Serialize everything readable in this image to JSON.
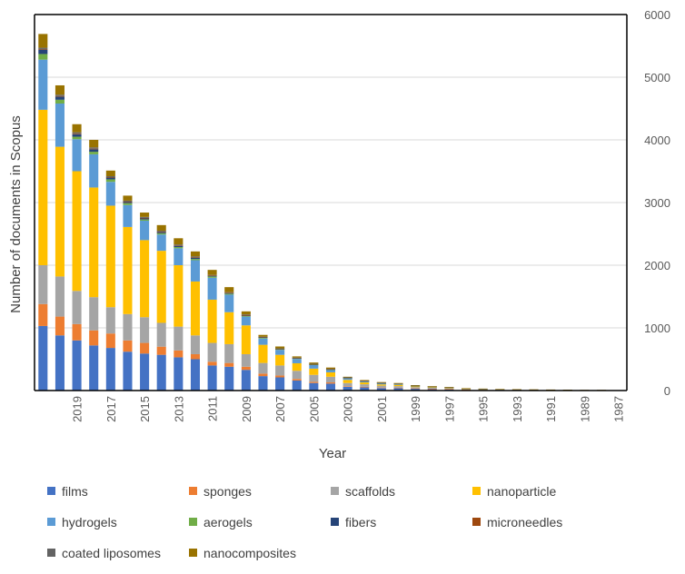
{
  "chart_data": {
    "type": "bar",
    "stacked": true,
    "xlabel": "Year",
    "ylabel": "Number of documents in Scopus",
    "ylim": [
      0,
      6000
    ],
    "yticks": [
      0,
      1000,
      2000,
      3000,
      4000,
      5000,
      6000
    ],
    "y_axis_side": "right",
    "grid": true,
    "legend_position": "bottom",
    "categories": [
      "2021",
      "2020",
      "2019",
      "2018",
      "2017",
      "2016",
      "2015",
      "2014",
      "2013",
      "2012",
      "2011",
      "2010",
      "2009",
      "2008",
      "2007",
      "2006",
      "2005",
      "2004",
      "2003",
      "2002",
      "2001",
      "2000",
      "1999",
      "1998",
      "1997",
      "1996",
      "1995",
      "1994",
      "1993",
      "1992",
      "1991",
      "1990",
      "1989",
      "1988",
      "1987"
    ],
    "x_tick_labels": [
      "2019",
      "2017",
      "2015",
      "2013",
      "2011",
      "2009",
      "2007",
      "2005",
      "2003",
      "2001",
      "1999",
      "1997",
      "1995",
      "1993",
      "1991",
      "1989",
      "1987"
    ],
    "series": [
      {
        "name": "films",
        "color": "#4472C4",
        "values": [
          1030,
          880,
          800,
          720,
          680,
          620,
          590,
          570,
          530,
          500,
          400,
          380,
          330,
          230,
          210,
          160,
          120,
          110,
          60,
          50,
          40,
          40,
          30,
          25,
          20,
          12,
          10,
          8,
          6,
          5,
          4,
          3,
          2,
          2,
          0
        ]
      },
      {
        "name": "sponges",
        "color": "#ED7D31",
        "values": [
          350,
          300,
          260,
          240,
          230,
          180,
          170,
          130,
          110,
          80,
          60,
          60,
          50,
          40,
          30,
          25,
          20,
          20,
          10,
          10,
          8,
          6,
          5,
          4,
          3,
          2,
          2,
          1,
          1,
          1,
          1,
          0,
          0,
          0,
          0
        ]
      },
      {
        "name": "scaffolds",
        "color": "#A5A5A5",
        "values": [
          620,
          640,
          530,
          530,
          420,
          420,
          410,
          380,
          380,
          300,
          300,
          300,
          200,
          170,
          160,
          130,
          110,
          90,
          50,
          40,
          30,
          25,
          20,
          15,
          12,
          8,
          6,
          4,
          3,
          3,
          2,
          2,
          1,
          1,
          0
        ]
      },
      {
        "name": "nanoparticle",
        "color": "#FFC000",
        "values": [
          2480,
          2070,
          1910,
          1750,
          1620,
          1390,
          1230,
          1150,
          980,
          860,
          690,
          510,
          460,
          290,
          170,
          120,
          100,
          70,
          50,
          30,
          20,
          20,
          10,
          10,
          8,
          5,
          4,
          3,
          3,
          2,
          2,
          2,
          1,
          1,
          0
        ]
      },
      {
        "name": "hydrogels",
        "color": "#5B9BD5",
        "values": [
          800,
          690,
          510,
          530,
          380,
          350,
          310,
          260,
          270,
          340,
          350,
          280,
          140,
          100,
          80,
          70,
          60,
          40,
          30,
          20,
          20,
          15,
          10,
          8,
          6,
          4,
          3,
          2,
          2,
          2,
          1,
          1,
          1,
          1,
          0
        ]
      },
      {
        "name": "aerogels",
        "color": "#70AD47",
        "values": [
          90,
          60,
          40,
          40,
          40,
          30,
          20,
          20,
          20,
          20,
          20,
          15,
          10,
          10,
          10,
          8,
          5,
          5,
          3,
          2,
          2,
          1,
          1,
          1,
          1,
          0,
          0,
          0,
          0,
          0,
          0,
          0,
          0,
          0,
          0
        ]
      },
      {
        "name": "fibers",
        "color": "#264478",
        "values": [
          70,
          50,
          40,
          40,
          30,
          20,
          20,
          20,
          20,
          20,
          10,
          10,
          10,
          10,
          5,
          5,
          5,
          5,
          3,
          2,
          2,
          1,
          1,
          1,
          1,
          0,
          0,
          0,
          0,
          0,
          0,
          0,
          0,
          0,
          0
        ]
      },
      {
        "name": "microneedles",
        "color": "#9E480E",
        "values": [
          10,
          10,
          10,
          10,
          5,
          5,
          5,
          5,
          5,
          5,
          5,
          5,
          3,
          3,
          3,
          2,
          2,
          2,
          1,
          1,
          1,
          0,
          0,
          0,
          0,
          0,
          0,
          0,
          0,
          0,
          0,
          0,
          0,
          0,
          0
        ]
      },
      {
        "name": "coated liposomes",
        "color": "#636363",
        "values": [
          20,
          20,
          20,
          20,
          15,
          15,
          15,
          15,
          15,
          15,
          10,
          10,
          10,
          5,
          5,
          5,
          5,
          5,
          3,
          2,
          2,
          2,
          2,
          1,
          1,
          1,
          1,
          1,
          1,
          1,
          1,
          1,
          1,
          1,
          0
        ]
      },
      {
        "name": "nanocomposites",
        "color": "#997300",
        "values": [
          220,
          150,
          130,
          120,
          90,
          80,
          70,
          90,
          100,
          80,
          80,
          80,
          50,
          30,
          30,
          20,
          20,
          20,
          10,
          10,
          10,
          10,
          8,
          5,
          5,
          5,
          5,
          5,
          5,
          5,
          5,
          5,
          5,
          5,
          3
        ]
      }
    ]
  }
}
